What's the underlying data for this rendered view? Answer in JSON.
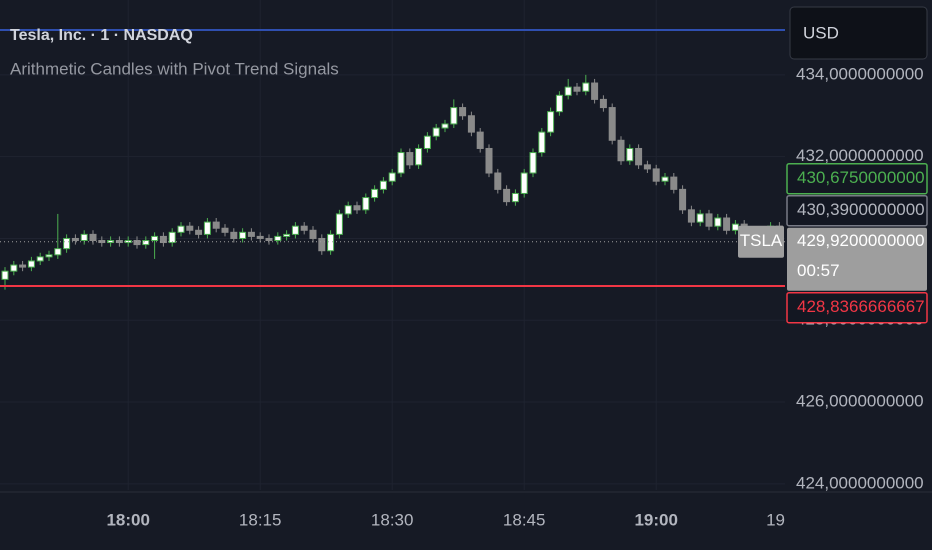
{
  "chart_data": {
    "type": "candlestick",
    "title": "Tesla, Inc. · 1 · NASDAQ",
    "subtitle": "Arithmetic Candles with Pivot Trend Signals",
    "currency": "USD",
    "symbol": "TSLA",
    "countdown": "00:57",
    "categories": [
      "17:46",
      "17:47",
      "17:48",
      "17:49",
      "17:50",
      "17:51",
      "17:52",
      "17:53",
      "17:54",
      "17:55",
      "17:56",
      "17:57",
      "17:58",
      "17:59",
      "18:00",
      "18:01",
      "18:02",
      "18:03",
      "18:04",
      "18:05",
      "18:06",
      "18:07",
      "18:08",
      "18:09",
      "18:10",
      "18:11",
      "18:12",
      "18:13",
      "18:14",
      "18:15",
      "18:16",
      "18:17",
      "18:18",
      "18:19",
      "18:20",
      "18:21",
      "18:22",
      "18:23",
      "18:24",
      "18:25",
      "18:26",
      "18:27",
      "18:28",
      "18:29",
      "18:30",
      "18:31",
      "18:32",
      "18:33",
      "18:34",
      "18:35",
      "18:36",
      "18:37",
      "18:38",
      "18:39",
      "18:40",
      "18:41",
      "18:42",
      "18:43",
      "18:44",
      "18:45",
      "18:46",
      "18:47",
      "18:48",
      "18:49",
      "18:50",
      "18:51",
      "18:52",
      "18:53",
      "18:54",
      "18:55",
      "18:56",
      "18:57",
      "18:58",
      "18:59",
      "19:00",
      "19:01",
      "19:02",
      "19:03",
      "19:04",
      "19:05",
      "19:06",
      "19:07",
      "19:08",
      "19:09",
      "19:10",
      "19:11",
      "19:12",
      "19:13",
      "19:14"
    ],
    "open": [
      429.0,
      429.2,
      429.35,
      429.3,
      429.45,
      429.55,
      429.6,
      429.75,
      430.0,
      429.95,
      430.1,
      429.95,
      429.9,
      429.95,
      429.9,
      429.95,
      429.85,
      429.95,
      430.05,
      429.9,
      430.15,
      430.3,
      430.2,
      430.1,
      430.4,
      430.25,
      430.15,
      430.0,
      430.15,
      430.05,
      430.0,
      429.95,
      430.05,
      430.1,
      430.3,
      430.2,
      430.0,
      429.7,
      430.1,
      430.6,
      430.8,
      430.7,
      431.0,
      431.2,
      431.4,
      431.6,
      432.1,
      431.8,
      432.2,
      432.5,
      432.7,
      432.8,
      433.2,
      433.0,
      432.6,
      432.2,
      431.6,
      431.2,
      430.9,
      431.1,
      431.6,
      432.1,
      432.6,
      433.1,
      433.5,
      433.7,
      433.6,
      433.8,
      433.4,
      433.2,
      432.4,
      431.9,
      432.2,
      431.8,
      431.7,
      431.4,
      431.5,
      431.2,
      430.7,
      430.4,
      430.6,
      430.3,
      430.5,
      430.2,
      430.35,
      430.1,
      430.0,
      430.2,
      430.3
    ],
    "high": [
      429.3,
      429.45,
      429.45,
      429.55,
      429.65,
      429.7,
      430.6,
      430.1,
      430.1,
      430.2,
      430.2,
      430.05,
      430.05,
      430.05,
      430.05,
      430.05,
      430.05,
      430.15,
      430.15,
      430.25,
      430.4,
      430.4,
      430.3,
      430.5,
      430.5,
      430.35,
      430.25,
      430.25,
      430.25,
      430.15,
      430.1,
      430.15,
      430.2,
      430.4,
      430.4,
      430.3,
      430.1,
      430.2,
      430.7,
      430.9,
      430.9,
      431.1,
      431.3,
      431.5,
      431.7,
      432.2,
      432.2,
      432.3,
      432.6,
      432.8,
      432.9,
      433.4,
      433.3,
      433.1,
      432.7,
      432.3,
      431.7,
      431.3,
      431.2,
      431.7,
      432.2,
      432.7,
      433.2,
      433.6,
      433.9,
      433.8,
      434.0,
      433.9,
      433.5,
      433.3,
      432.5,
      432.3,
      432.3,
      431.9,
      431.8,
      431.6,
      431.6,
      431.3,
      430.8,
      430.7,
      430.7,
      430.6,
      430.6,
      430.45,
      430.45,
      430.2,
      430.3,
      430.4,
      430.4
    ],
    "low": [
      428.75,
      429.1,
      429.2,
      429.2,
      429.35,
      429.45,
      429.5,
      429.65,
      429.85,
      429.85,
      429.85,
      429.8,
      429.8,
      429.8,
      429.8,
      429.75,
      429.75,
      429.5,
      429.8,
      429.8,
      430.05,
      430.1,
      430.0,
      430.0,
      430.15,
      430.05,
      429.9,
      429.9,
      429.95,
      429.9,
      429.85,
      429.85,
      429.95,
      430.0,
      430.1,
      429.9,
      429.6,
      429.6,
      430.0,
      430.5,
      430.6,
      430.6,
      430.9,
      431.1,
      431.3,
      431.5,
      431.7,
      431.7,
      432.1,
      432.4,
      432.6,
      432.7,
      432.9,
      432.5,
      432.1,
      431.5,
      431.1,
      430.8,
      430.8,
      431.0,
      431.5,
      432.0,
      432.5,
      433.0,
      433.4,
      433.5,
      433.5,
      433.3,
      433.1,
      432.3,
      431.8,
      431.8,
      431.7,
      431.6,
      431.3,
      431.3,
      431.1,
      430.6,
      430.3,
      430.3,
      430.2,
      430.2,
      430.1,
      430.1,
      430.0,
      429.9,
      429.9,
      430.1,
      429.82
    ],
    "close": [
      429.2,
      429.35,
      429.3,
      429.45,
      429.55,
      429.6,
      429.75,
      430.0,
      429.95,
      430.1,
      429.95,
      429.9,
      429.95,
      429.9,
      429.95,
      429.85,
      429.95,
      430.05,
      429.9,
      430.15,
      430.3,
      430.2,
      430.1,
      430.4,
      430.25,
      430.15,
      430.0,
      430.15,
      430.05,
      430.0,
      429.95,
      430.05,
      430.1,
      430.3,
      430.2,
      430.0,
      429.7,
      430.1,
      430.6,
      430.8,
      430.7,
      431.0,
      431.2,
      431.4,
      431.6,
      432.1,
      431.8,
      432.2,
      432.5,
      432.7,
      432.8,
      433.2,
      433.0,
      432.6,
      432.2,
      431.6,
      431.2,
      430.9,
      431.1,
      431.6,
      432.1,
      432.6,
      433.1,
      433.5,
      433.7,
      433.6,
      433.8,
      433.4,
      433.2,
      432.4,
      431.9,
      432.2,
      431.8,
      431.7,
      431.4,
      431.5,
      431.2,
      430.7,
      430.4,
      430.6,
      430.3,
      430.5,
      430.2,
      430.35,
      430.1,
      430.0,
      430.2,
      430.3,
      429.92
    ],
    "up_color": "#4caf50",
    "up_fill": "#ffffff",
    "down_color": "#8a8a8a",
    "ylim": [
      423.85,
      435.83
    ],
    "yticks": [
      {
        "value": 434,
        "label": "434,0000000000"
      },
      {
        "value": 432,
        "label": "432,0000000000"
      },
      {
        "value": 430,
        "label": "430,0000000000"
      },
      {
        "value": 428,
        "label": "428,0000000000"
      },
      {
        "value": 426,
        "label": "426,0000000000"
      },
      {
        "value": 424,
        "label": "424,0000000000"
      }
    ],
    "xticks": [
      "18:00",
      "18:15",
      "18:30",
      "18:45",
      "19:00",
      {
        "value": "19:15",
        "label": "19"
      }
    ],
    "grid": true,
    "price_lines": [
      {
        "value": 430.675,
        "label": "430,6750000000",
        "color": "#4caf50",
        "style": "outline",
        "line": "none"
      },
      {
        "value": 430.39,
        "label": "430,3900000000",
        "color": "#787b86",
        "style": "outline",
        "line": "none"
      },
      {
        "value": 429.92,
        "label": "429,9200000000",
        "color": "#9e9e9e",
        "style": "filled",
        "line": "dotted"
      },
      {
        "value": 428.8366666667,
        "label": "428,8366666667",
        "color": "#f23645",
        "style": "outline",
        "line": "solid"
      }
    ]
  }
}
